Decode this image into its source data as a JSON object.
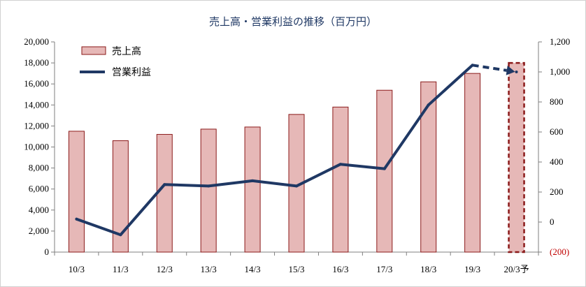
{
  "chart_data": {
    "type": "bar+line",
    "title": "売上高・営業利益の推移（百万円）",
    "categories": [
      "10/3",
      "11/3",
      "12/3",
      "13/3",
      "14/3",
      "15/3",
      "16/3",
      "17/3",
      "18/3",
      "19/3",
      "20/3予"
    ],
    "series": [
      {
        "name": "売上高",
        "type": "bar",
        "axis": "left",
        "color": "#e6b8b7",
        "stroke": "#8b1a1a",
        "values": [
          11500,
          10600,
          11200,
          11700,
          11900,
          13100,
          13800,
          15400,
          16200,
          17000,
          18000
        ],
        "forecast_index": 10
      },
      {
        "name": "営業利益",
        "type": "line",
        "axis": "right",
        "color": "#1f3864",
        "values": [
          20,
          -85,
          250,
          240,
          275,
          240,
          385,
          355,
          780,
          1045,
          1000
        ],
        "forecast_index": 10
      }
    ],
    "y_left": {
      "min": 0,
      "max": 20000,
      "ticks": [
        0,
        2000,
        4000,
        6000,
        8000,
        10000,
        12000,
        14000,
        16000,
        18000,
        20000
      ],
      "tick_labels": [
        "0",
        "2,000",
        "4,000",
        "6,000",
        "8,000",
        "10,000",
        "12,000",
        "14,000",
        "16,000",
        "18,000",
        "20,000"
      ]
    },
    "y_right": {
      "min": -200,
      "max": 1200,
      "ticks": [
        -200,
        0,
        200,
        400,
        600,
        800,
        1000,
        1200
      ],
      "tick_labels": [
        "(200)",
        "0",
        "200",
        "400",
        "600",
        "800",
        "1,000",
        "1,200"
      ]
    },
    "grid": false,
    "legend_position": "top-left"
  }
}
